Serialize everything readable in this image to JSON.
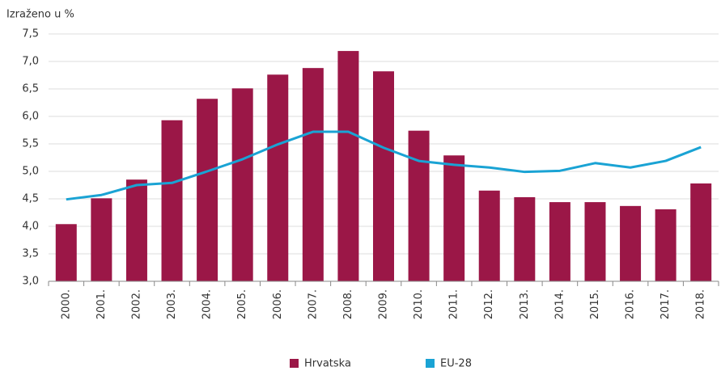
{
  "chart_data": {
    "type": "bar_line",
    "y_axis_label": "Izraženo u %",
    "categories": [
      "2000.",
      "2001.",
      "2002.",
      "2003.",
      "2004.",
      "2005.",
      "2006.",
      "2007.",
      "2008.",
      "2009.",
      "2010.",
      "2011.",
      "2012.",
      "2013.",
      "2014.",
      "2015.",
      "2016.",
      "2017.",
      "2018."
    ],
    "series": [
      {
        "name": "Hrvatska",
        "type": "bar",
        "color": "#9b1747",
        "values": [
          4.04,
          4.51,
          4.85,
          5.93,
          6.32,
          6.51,
          6.76,
          6.88,
          7.19,
          6.82,
          5.74,
          5.29,
          4.65,
          4.53,
          4.44,
          4.44,
          4.37,
          4.31,
          4.78
        ]
      },
      {
        "name": "EU-28",
        "type": "line",
        "color": "#1aa3d4",
        "values": [
          4.49,
          4.57,
          4.75,
          4.79,
          5.0,
          5.22,
          5.49,
          5.72,
          5.72,
          5.43,
          5.19,
          5.12,
          5.07,
          4.99,
          5.01,
          5.15,
          5.07,
          5.19,
          5.44
        ]
      }
    ],
    "ylim": [
      3,
      7.5
    ],
    "yticks": [
      {
        "value": 3,
        "label": "3,0"
      },
      {
        "value": 3.5,
        "label": "3,5"
      },
      {
        "value": 4,
        "label": "4,0"
      },
      {
        "value": 4.5,
        "label": "4,5"
      },
      {
        "value": 5,
        "label": "5,0"
      },
      {
        "value": 5.5,
        "label": "5,5"
      },
      {
        "value": 6,
        "label": "6,0"
      },
      {
        "value": 6.5,
        "label": "6,5"
      },
      {
        "value": 7,
        "label": "7,0"
      },
      {
        "value": 7.5,
        "label": "7,5"
      }
    ],
    "grid": true,
    "legend": "bottom"
  }
}
